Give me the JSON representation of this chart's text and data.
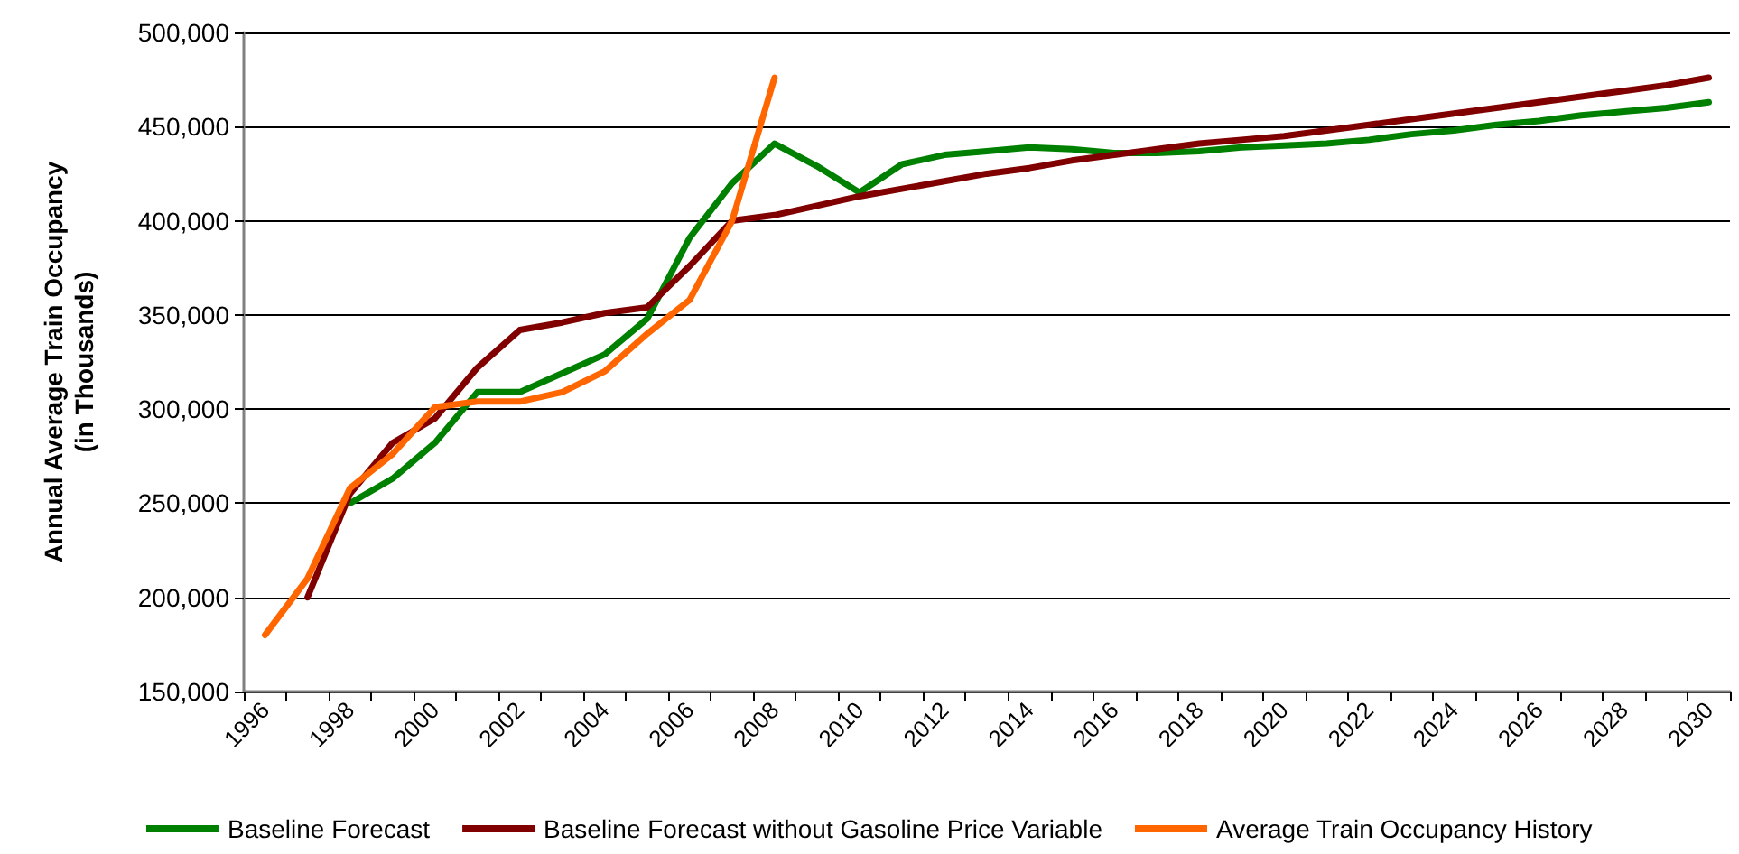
{
  "chart_data": {
    "type": "line",
    "ylabel": "Annual Average Train Occupancy\n(in Thousands)",
    "categories": [
      "1996",
      null,
      "1998",
      null,
      "2000",
      null,
      "2002",
      null,
      "2004",
      null,
      "2006",
      null,
      "2008",
      null,
      "2010",
      null,
      "2012",
      null,
      "2014",
      null,
      "2016",
      null,
      "2018",
      null,
      "2020",
      null,
      "2022",
      null,
      "2024",
      null,
      "2026",
      null,
      "2028",
      null,
      "2030"
    ],
    "series": [
      {
        "name": "Baseline Forecast",
        "color": "#008000",
        "values": [
          null,
          null,
          250000,
          263000,
          282000,
          309000,
          309000,
          319000,
          329000,
          348000,
          391000,
          420000,
          441000,
          429000,
          415000,
          430000,
          435000,
          437000,
          439000,
          438000,
          436000,
          436000,
          437000,
          439000,
          440000,
          441000,
          443000,
          446000,
          448000,
          451000,
          453000,
          456000,
          458000,
          460000,
          463000
        ]
      },
      {
        "name": "Baseline Forecast without Gasoline Price Variable",
        "color": "#800000",
        "values": [
          null,
          200000,
          255000,
          282000,
          295000,
          322000,
          342000,
          346000,
          351000,
          354000,
          376000,
          400000,
          403000,
          408000,
          413000,
          417000,
          421000,
          425000,
          428000,
          432000,
          435000,
          438000,
          441000,
          443000,
          445000,
          448000,
          451000,
          454000,
          457000,
          460000,
          463000,
          466000,
          469000,
          472000,
          476000
        ]
      },
      {
        "name": "Average Train Occupancy History",
        "color": "#ff6600",
        "values": [
          180000,
          210000,
          258000,
          276000,
          301000,
          304000,
          304000,
          309000,
          320000,
          340000,
          358000,
          400000,
          476000,
          null,
          null,
          null,
          null,
          null,
          null,
          null,
          null,
          null,
          null,
          null,
          null,
          null,
          null,
          null,
          null,
          null,
          null,
          null,
          null,
          null,
          null
        ]
      }
    ],
    "ylim": [
      150000,
      500000
    ],
    "yticks": [
      {
        "value": 150000,
        "label": "150,000"
      },
      {
        "value": 200000,
        "label": "200,000"
      },
      {
        "value": 250000,
        "label": "250,000"
      },
      {
        "value": 300000,
        "label": "300,000"
      },
      {
        "value": 350000,
        "label": "350,000"
      },
      {
        "value": 400000,
        "label": "400,000"
      },
      {
        "value": 450000,
        "label": "450,000"
      },
      {
        "value": 500000,
        "label": "500,000"
      }
    ],
    "grid": "y",
    "legend": "bottom",
    "marker": "none",
    "line_style": "solid"
  }
}
